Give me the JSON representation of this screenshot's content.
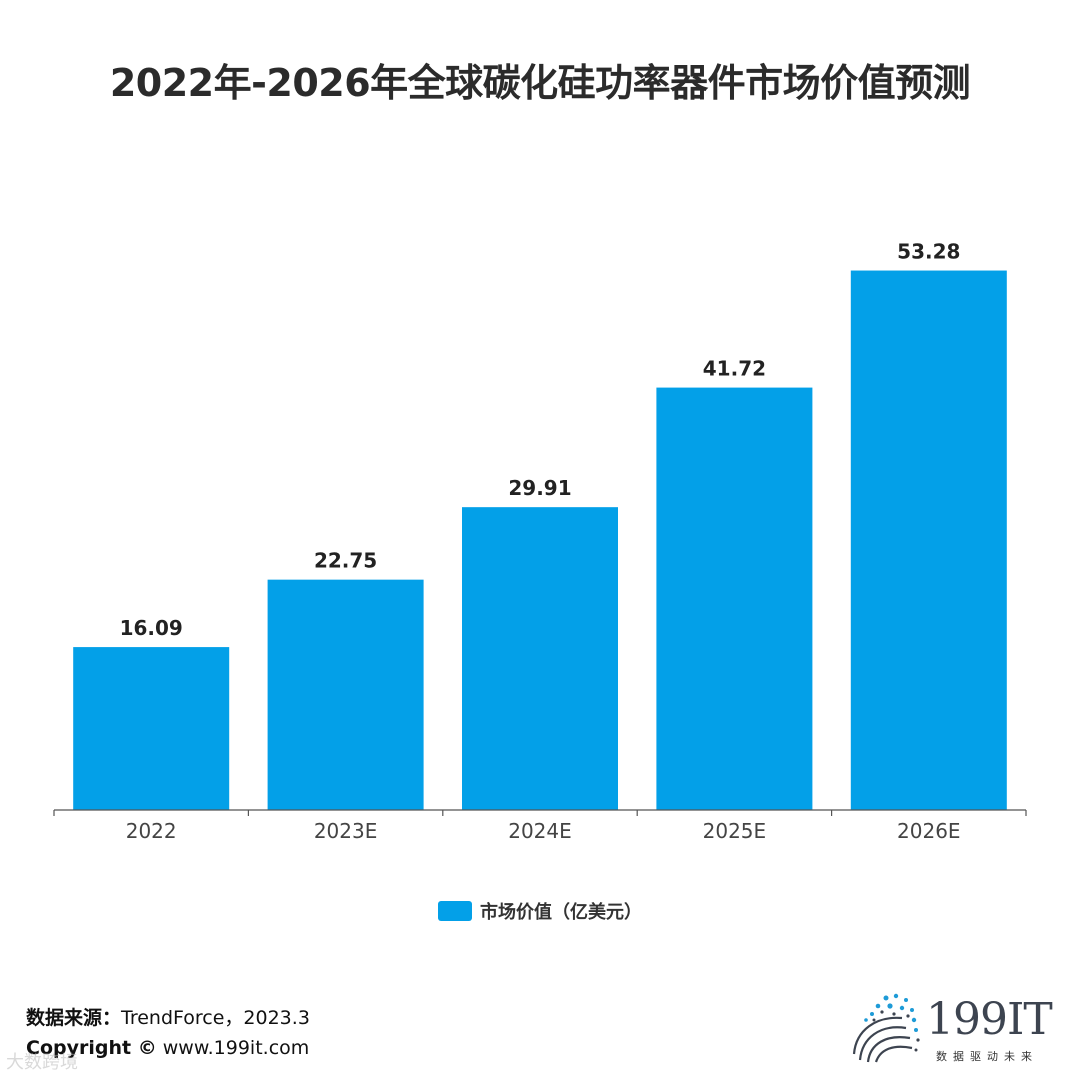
{
  "colors": {
    "bar": "#03a0e8",
    "axis": "#555555",
    "label": "#222222"
  },
  "chart_data": {
    "type": "bar",
    "title": "2022年-2026年全球碳化硅功率器件市场价值预测",
    "categories": [
      "2022",
      "2023E",
      "2024E",
      "2025E",
      "2026E"
    ],
    "series": [
      {
        "name": "市场价值（亿美元）",
        "values": [
          16.09,
          22.75,
          29.91,
          41.72,
          53.28
        ]
      }
    ],
    "data_labels": [
      "16.09",
      "22.75",
      "29.91",
      "41.72",
      "53.28"
    ],
    "ylim": [
      0,
      60
    ],
    "grid": false,
    "legend_position": "bottom-center",
    "xlabel": "",
    "ylabel": ""
  },
  "footer": {
    "source_label": "数据来源：",
    "source_value": "TrendForce，2023.3",
    "copyright_label": "Copyright ©",
    "copyright_value": "www.199it.com"
  },
  "logo": {
    "name": "199IT",
    "tagline": "数据驱动未来",
    "icon": "dot-swirl-logo-icon"
  },
  "watermark": "大数跨境"
}
